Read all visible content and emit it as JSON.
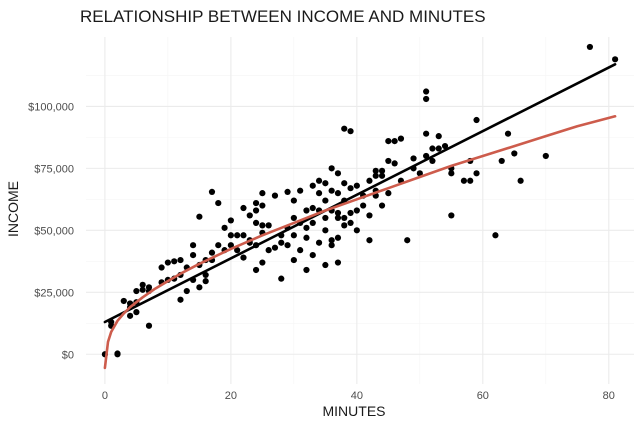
{
  "chart_data": {
    "type": "scatter",
    "title": "RELATIONSHIP BETWEEN INCOME AND MINUTES",
    "xlabel": "MINUTES",
    "ylabel": "INCOME",
    "xlim": [
      -3,
      84
    ],
    "ylim": [
      -12000,
      128000
    ],
    "x_ticks": [
      0,
      20,
      40,
      60,
      80
    ],
    "x_tick_labels": [
      "0",
      "20",
      "40",
      "60",
      "80"
    ],
    "y_ticks": [
      0,
      25000,
      50000,
      75000,
      100000
    ],
    "y_tick_labels": [
      "$0",
      "$25,000",
      "$50,000",
      "$75,000",
      "$100,000"
    ],
    "grid": true,
    "legend": "none",
    "colors": {
      "points": "#000000",
      "linear_fit": "#000000",
      "log_fit": "#cd5c4c"
    },
    "points": [
      [
        0,
        0
      ],
      [
        1,
        13000
      ],
      [
        1,
        11500
      ],
      [
        2,
        0
      ],
      [
        2,
        300
      ],
      [
        3,
        21500
      ],
      [
        4,
        20500
      ],
      [
        4,
        15500
      ],
      [
        4,
        19000
      ],
      [
        5,
        21000
      ],
      [
        5,
        17000
      ],
      [
        5,
        25500
      ],
      [
        6,
        28000
      ],
      [
        6,
        26000
      ],
      [
        7,
        27000
      ],
      [
        7,
        25500
      ],
      [
        7,
        11500
      ],
      [
        9,
        35000
      ],
      [
        9,
        29000
      ],
      [
        10,
        37000
      ],
      [
        10,
        30000
      ],
      [
        11,
        37500
      ],
      [
        11,
        30500
      ],
      [
        12,
        38000
      ],
      [
        12,
        32000
      ],
      [
        12,
        22000
      ],
      [
        13,
        35000
      ],
      [
        13,
        25500
      ],
      [
        14,
        44000
      ],
      [
        14,
        40000
      ],
      [
        14,
        30000
      ],
      [
        15,
        36000
      ],
      [
        15,
        27000
      ],
      [
        15,
        55500
      ],
      [
        16,
        38000
      ],
      [
        16,
        32000
      ],
      [
        16,
        29500
      ],
      [
        17,
        65500
      ],
      [
        17,
        41000
      ],
      [
        17,
        38000
      ],
      [
        18,
        61000
      ],
      [
        18,
        44000
      ],
      [
        19,
        51000
      ],
      [
        19,
        42000
      ],
      [
        20,
        54000
      ],
      [
        20,
        48000
      ],
      [
        20,
        44000
      ],
      [
        21,
        48000
      ],
      [
        21,
        42000
      ],
      [
        22,
        59000
      ],
      [
        22,
        48000
      ],
      [
        22,
        39000
      ],
      [
        23,
        56000
      ],
      [
        23,
        46000
      ],
      [
        23,
        45000
      ],
      [
        24,
        61000
      ],
      [
        24,
        58000
      ],
      [
        24,
        53000
      ],
      [
        24,
        44000
      ],
      [
        24,
        34000
      ],
      [
        25,
        65000
      ],
      [
        25,
        60000
      ],
      [
        25,
        52000
      ],
      [
        25,
        49000
      ],
      [
        25,
        37000
      ],
      [
        26,
        52000
      ],
      [
        26,
        42000
      ],
      [
        27,
        64000
      ],
      [
        27,
        43000
      ],
      [
        28,
        48000
      ],
      [
        28,
        45000
      ],
      [
        28,
        30500
      ],
      [
        29,
        65500
      ],
      [
        29,
        51000
      ],
      [
        29,
        44000
      ],
      [
        30,
        62000
      ],
      [
        30,
        55000
      ],
      [
        30,
        48000
      ],
      [
        30,
        38000
      ],
      [
        31,
        66000
      ],
      [
        31,
        53000
      ],
      [
        31,
        42000
      ],
      [
        32,
        58000
      ],
      [
        32,
        51000
      ],
      [
        32,
        47000
      ],
      [
        32,
        34000
      ],
      [
        33,
        68000
      ],
      [
        33,
        59000
      ],
      [
        33,
        53000
      ],
      [
        33,
        40000
      ],
      [
        34,
        70000
      ],
      [
        34,
        65000
      ],
      [
        34,
        58000
      ],
      [
        34,
        45000
      ],
      [
        35,
        69000
      ],
      [
        35,
        62000
      ],
      [
        35,
        55000
      ],
      [
        35,
        50000
      ],
      [
        35,
        36000
      ],
      [
        36,
        75000
      ],
      [
        36,
        66000
      ],
      [
        36,
        58000
      ],
      [
        36,
        46000
      ],
      [
        36,
        44000
      ],
      [
        37,
        73000
      ],
      [
        37,
        65000
      ],
      [
        37,
        57000
      ],
      [
        37,
        55000
      ],
      [
        37,
        47000
      ],
      [
        37,
        37000
      ],
      [
        38,
        91000
      ],
      [
        38,
        69000
      ],
      [
        38,
        62000
      ],
      [
        38,
        55000
      ],
      [
        38,
        52000
      ],
      [
        39,
        90000
      ],
      [
        39,
        67000
      ],
      [
        39,
        57000
      ],
      [
        39,
        53000
      ],
      [
        40,
        68000
      ],
      [
        40,
        58000
      ],
      [
        40,
        50000
      ],
      [
        41,
        64000
      ],
      [
        41,
        60000
      ],
      [
        42,
        70000
      ],
      [
        42,
        56000
      ],
      [
        42,
        46000
      ],
      [
        43,
        74000
      ],
      [
        43,
        72000
      ],
      [
        43,
        66000
      ],
      [
        43,
        64000
      ],
      [
        44,
        74000
      ],
      [
        44,
        72000
      ],
      [
        44,
        60000
      ],
      [
        45,
        86000
      ],
      [
        45,
        78000
      ],
      [
        45,
        65000
      ],
      [
        46,
        86000
      ],
      [
        46,
        77000
      ],
      [
        47,
        87000
      ],
      [
        47,
        70000
      ],
      [
        48,
        46000
      ],
      [
        49,
        79000
      ],
      [
        49,
        75000
      ],
      [
        50,
        73000
      ],
      [
        51,
        106000
      ],
      [
        51,
        103000
      ],
      [
        51,
        89000
      ],
      [
        51,
        80000
      ],
      [
        52,
        83000
      ],
      [
        52,
        78000
      ],
      [
        53,
        88000
      ],
      [
        53,
        83000
      ],
      [
        54,
        84000
      ],
      [
        55,
        75000
      ],
      [
        55,
        73000
      ],
      [
        55,
        56000
      ],
      [
        57,
        70000
      ],
      [
        58,
        78000
      ],
      [
        58,
        70000
      ],
      [
        59,
        94500
      ],
      [
        59,
        73000
      ],
      [
        62,
        48000
      ],
      [
        63,
        78000
      ],
      [
        64,
        89000
      ],
      [
        65,
        81000
      ],
      [
        66,
        70000
      ],
      [
        70,
        80000
      ],
      [
        77,
        124000
      ],
      [
        81,
        119000
      ]
    ],
    "linear_fit": {
      "x": [
        0,
        81
      ],
      "y": [
        13000,
        117000
      ]
    },
    "log_fit": {
      "x": [
        0,
        0.5,
        1,
        2,
        3,
        4,
        5,
        6,
        8,
        10,
        12,
        15,
        20,
        25,
        30,
        35,
        40,
        45,
        50,
        55,
        60,
        65,
        70,
        75,
        81
      ],
      "y": [
        -5500,
        5000,
        9000,
        13500,
        16500,
        19000,
        21000,
        23000,
        26500,
        29500,
        32500,
        36500,
        42500,
        48000,
        53000,
        58000,
        62500,
        67000,
        71500,
        76000,
        80000,
        84000,
        88000,
        92000,
        96000
      ]
    }
  }
}
